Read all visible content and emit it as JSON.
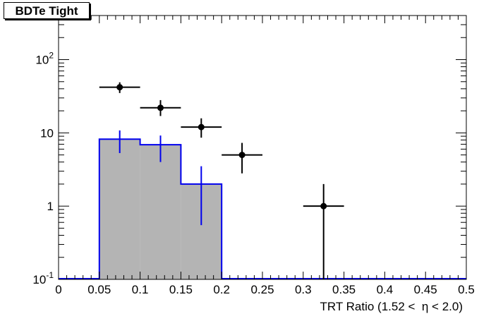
{
  "chart_data": {
    "type": "histogram",
    "title": "BDTe Tight",
    "xlabel": "TRT Ratio (1.52 <  η < 2.0)",
    "ylabel": "",
    "xlim": [
      0,
      0.5
    ],
    "ylim": [
      0.1,
      400
    ],
    "yscale": "log",
    "grid": false,
    "x_ticks": [
      "0",
      "0.05",
      "0.1",
      "0.15",
      "0.2",
      "0.25",
      "0.3",
      "0.35",
      "0.4",
      "0.45",
      "0.5"
    ],
    "y_ticks": [
      {
        "label": "10",
        "sup": "-1",
        "value": 0.1
      },
      {
        "label": "1",
        "sup": "",
        "value": 1
      },
      {
        "label": "10",
        "sup": "",
        "value": 10
      },
      {
        "label": "10",
        "sup": "2",
        "value": 100
      }
    ],
    "series": [
      {
        "kind": "filled-histogram",
        "fill": "#b4b4b4",
        "line": "#0000ee",
        "bin_edges": [
          0.05,
          0.1,
          0.15,
          0.2
        ],
        "values": [
          8.2,
          6.9,
          2.0
        ],
        "errors_low": [
          5.3,
          4.0,
          0.55
        ],
        "errors_high": [
          10.8,
          9.2,
          3.5
        ]
      },
      {
        "kind": "data-points",
        "color": "#000000",
        "x": [
          0.075,
          0.125,
          0.175,
          0.225,
          0.325
        ],
        "xerr": 0.025,
        "y": [
          42,
          22,
          12,
          5,
          1
        ],
        "errors_low": [
          35,
          17,
          8.6,
          2.8,
          0.1
        ],
        "errors_high": [
          49,
          28,
          15.8,
          7.3,
          2.0
        ]
      }
    ]
  }
}
